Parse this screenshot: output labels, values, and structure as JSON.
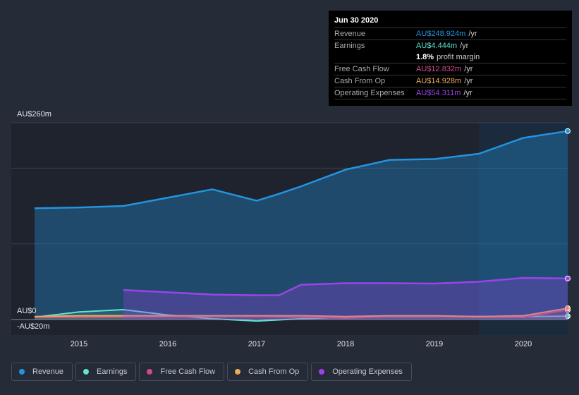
{
  "chart_data": {
    "type": "area",
    "y_axis_labels": [
      "AU$260m",
      "AU$0",
      "-AU$20m"
    ],
    "ylim": [
      -20,
      260
    ],
    "x_ticks": [
      "2015",
      "2016",
      "2017",
      "2018",
      "2019",
      "2020"
    ],
    "highlight_range": [
      2019.5,
      2020.5
    ],
    "series": [
      {
        "name": "Revenue",
        "color": "#2394df",
        "x": [
          2014.5,
          2015,
          2015.5,
          2016,
          2016.5,
          2017,
          2017.25,
          2017.5,
          2018,
          2018.5,
          2019,
          2019.5,
          2020,
          2020.5
        ],
        "values": [
          147,
          148,
          150,
          161,
          172,
          157,
          166,
          176,
          198,
          211,
          212,
          219,
          240,
          249
        ]
      },
      {
        "name": "Earnings",
        "color": "#61e4d1",
        "x": [
          2014.5,
          2015,
          2015.5,
          2016,
          2016.5,
          2017,
          2017.5,
          2018,
          2018.5,
          2019,
          2019.5,
          2020,
          2020.5
        ],
        "values": [
          3,
          10,
          13,
          6,
          1,
          -2,
          1,
          3,
          4,
          4,
          4,
          4,
          4.4
        ]
      },
      {
        "name": "Free Cash Flow",
        "color": "#d04b8b",
        "x": [
          2014.5,
          2015,
          2016,
          2017,
          2017.5,
          2018,
          2018.5,
          2019,
          2019.5,
          2020,
          2020.5
        ],
        "values": [
          3,
          3,
          4,
          4,
          3,
          2,
          4,
          4,
          3,
          3,
          12.8
        ]
      },
      {
        "name": "Cash From Op",
        "color": "#e9aa5e",
        "x": [
          2014.5,
          2015,
          2016,
          2017,
          2017.5,
          2018,
          2018.5,
          2019,
          2019.5,
          2020,
          2020.5
        ],
        "values": [
          4,
          5,
          5,
          5,
          5,
          4,
          5,
          5,
          4,
          5,
          14.9
        ]
      },
      {
        "name": "Operating Expenses",
        "color": "#9b43e8",
        "x": [
          2015.5,
          2016,
          2016.5,
          2017,
          2017.25,
          2017.5,
          2018,
          2018.5,
          2019,
          2019.5,
          2020,
          2020.5
        ],
        "values": [
          39,
          36,
          33,
          32,
          32,
          46,
          48,
          48,
          47.5,
          50,
          55,
          54.3
        ]
      }
    ]
  },
  "tooltip": {
    "date": "Jun 30 2020",
    "rows": [
      {
        "label": "Revenue",
        "value": "AU$248.924m",
        "unit": "/yr",
        "color": "#2394df"
      },
      {
        "label": "Earnings",
        "value": "AU$4.444m",
        "unit": "/yr",
        "color": "#61e4d1"
      },
      {
        "label": "",
        "value": "1.8%",
        "unit": "profit margin",
        "color": "#ffffff"
      },
      {
        "label": "Free Cash Flow",
        "value": "AU$12.832m",
        "unit": "/yr",
        "color": "#d04b8b"
      },
      {
        "label": "Cash From Op",
        "value": "AU$14.928m",
        "unit": "/yr",
        "color": "#e9aa5e"
      },
      {
        "label": "Operating Expenses",
        "value": "AU$54.311m",
        "unit": "/yr",
        "color": "#9b43e8"
      }
    ]
  }
}
